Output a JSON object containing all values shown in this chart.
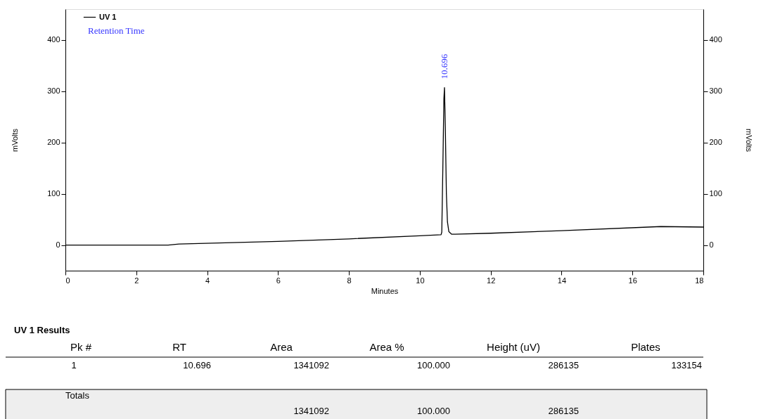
{
  "chart_data": {
    "type": "line",
    "xlabel": "Minutes",
    "ylabel": "mVolts",
    "y2label": "mVolts",
    "xlim": [
      0,
      18
    ],
    "xticks": [
      0,
      2,
      4,
      6,
      8,
      10,
      12,
      14,
      16,
      18
    ],
    "ylim": [
      -50,
      460
    ],
    "yticks": [
      0,
      100,
      200,
      300,
      400
    ],
    "y2lim": [
      -50,
      460
    ],
    "y2ticks": [
      0,
      100,
      200,
      300,
      400
    ],
    "grid": false,
    "legend": "top left",
    "marker": "none",
    "line_style": "solid",
    "series": [
      {
        "name": "UV 1",
        "color": "#000000",
        "x": [
          0,
          2.9,
          3.2,
          6,
          8,
          10,
          10.6,
          10.62,
          10.65,
          10.68,
          10.696,
          10.72,
          10.75,
          10.78,
          10.82,
          10.9,
          11,
          12,
          14,
          16.8,
          18
        ],
        "values": [
          0,
          0,
          2,
          7,
          12,
          18,
          20,
          25,
          150,
          285,
          307,
          230,
          100,
          45,
          26,
          21,
          21,
          23,
          28,
          36,
          35
        ]
      }
    ],
    "annotations": [
      "Retention Time",
      {
        "text": "10.696",
        "x": 10.696,
        "y": 307
      },
      "UV 1 Results",
      "Pk #",
      "RT",
      "Area",
      "Area %",
      "Height (uV)",
      "Plates",
      "1",
      "10.696",
      "1341092",
      "100.000",
      "286135",
      "133154",
      "Totals",
      "1341092",
      "100.000",
      "286135"
    ]
  }
}
